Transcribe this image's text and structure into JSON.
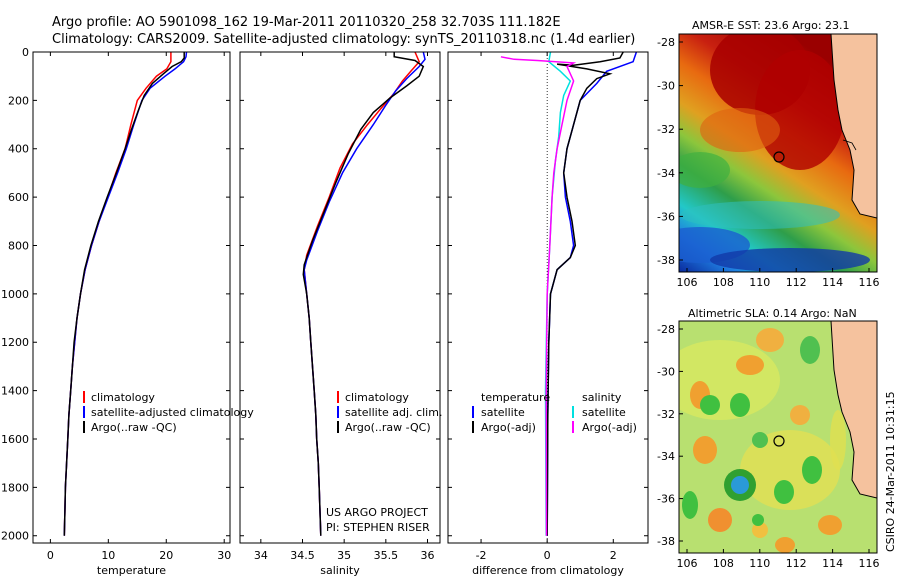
{
  "header": {
    "line1": "Argo profile: AO 5901098_162 19-Mar-2011 20110320_258 32.703S 111.182E",
    "line2": "Climatology: CARS2009. Satellite-adjusted climatology: synTS_20110318.nc (1.4d earlier)"
  },
  "colors": {
    "climatology": "#ff0000",
    "satellite": "#0000ff",
    "argo": "#000000",
    "satellite_salinity": "#00e0e0",
    "argo_salinity": "#ff00ff",
    "land": "#f5c29e"
  },
  "chart_data": [
    {
      "type": "line",
      "xlabel": "temperature",
      "xticks": [
        "0",
        "10",
        "20",
        "30"
      ],
      "yticks": [
        "0",
        "200",
        "400",
        "600",
        "800",
        "1000",
        "1200",
        "1400",
        "1600",
        "1800",
        "2000"
      ],
      "xlim": [
        -3,
        31
      ],
      "ylim": [
        2030,
        0
      ],
      "legend": [
        "climatology",
        "satellite-adjusted climatology",
        "Argo(..raw -QC)"
      ],
      "series": [
        {
          "name": "climatology",
          "color": "#ff0000",
          "points": [
            [
              20.8,
              0
            ],
            [
              20.8,
              40
            ],
            [
              20.1,
              70
            ],
            [
              18.3,
              100
            ],
            [
              16.5,
              150
            ],
            [
              15.0,
              200
            ],
            [
              13.9,
              300
            ],
            [
              12.9,
              400
            ],
            [
              11.3,
              500
            ],
            [
              9.9,
              600
            ],
            [
              8.4,
              700
            ],
            [
              7.1,
              800
            ],
            [
              6.0,
              900
            ],
            [
              5.2,
              1000
            ],
            [
              4.6,
              1100
            ],
            [
              4.2,
              1200
            ],
            [
              3.8,
              1300
            ],
            [
              3.5,
              1400
            ],
            [
              3.2,
              1500
            ],
            [
              3.0,
              1600
            ],
            [
              2.8,
              1700
            ],
            [
              2.6,
              1800
            ],
            [
              2.5,
              1900
            ],
            [
              2.4,
              2000
            ]
          ]
        },
        {
          "name": "satellite-adjusted climatology",
          "color": "#0000ff",
          "points": [
            [
              23.5,
              0
            ],
            [
              23.4,
              20
            ],
            [
              23.0,
              40
            ],
            [
              21.5,
              70
            ],
            [
              19.8,
              100
            ],
            [
              17.2,
              150
            ],
            [
              15.8,
              200
            ],
            [
              14.4,
              300
            ],
            [
              13.1,
              400
            ],
            [
              11.6,
              500
            ],
            [
              10.0,
              600
            ],
            [
              8.4,
              700
            ],
            [
              7.1,
              800
            ],
            [
              6.0,
              900
            ],
            [
              5.2,
              1000
            ],
            [
              4.6,
              1100
            ],
            [
              4.2,
              1200
            ],
            [
              3.8,
              1300
            ],
            [
              3.5,
              1400
            ],
            [
              3.2,
              1500
            ],
            [
              3.0,
              1600
            ],
            [
              2.8,
              1700
            ],
            [
              2.6,
              1800
            ],
            [
              2.5,
              1900
            ],
            [
              2.4,
              2000
            ]
          ]
        },
        {
          "name": "Argo(..raw -QC)",
          "color": "#000000",
          "points": [
            [
              23.1,
              0
            ],
            [
              23.1,
              25
            ],
            [
              22.6,
              40
            ],
            [
              21.0,
              60
            ],
            [
              19.5,
              90
            ],
            [
              17.6,
              130
            ],
            [
              16.2,
              180
            ],
            [
              15.2,
              240
            ],
            [
              14.0,
              320
            ],
            [
              12.9,
              400
            ],
            [
              11.4,
              500
            ],
            [
              9.8,
              600
            ],
            [
              8.3,
              700
            ],
            [
              7.0,
              800
            ],
            [
              5.9,
              900
            ],
            [
              5.2,
              1000
            ],
            [
              4.6,
              1100
            ],
            [
              4.1,
              1200
            ],
            [
              3.8,
              1300
            ],
            [
              3.5,
              1400
            ],
            [
              3.2,
              1500
            ],
            [
              3.0,
              1600
            ],
            [
              2.8,
              1700
            ],
            [
              2.6,
              1800
            ],
            [
              2.5,
              1900
            ],
            [
              2.4,
              2000
            ]
          ]
        }
      ]
    },
    {
      "type": "line",
      "xlabel": "salinity",
      "xticks": [
        "34",
        "34.5",
        "35",
        "35.5",
        "36"
      ],
      "xtick_values": [
        34,
        34.5,
        35,
        35.5,
        36
      ],
      "xlim": [
        33.75,
        36.15
      ],
      "ylim": [
        2030,
        0
      ],
      "legend": [
        "climatology",
        "satellite adj. clim.",
        "Argo(..raw -QC)"
      ],
      "series": [
        {
          "name": "climatology",
          "color": "#ff0000",
          "points": [
            [
              35.85,
              0
            ],
            [
              35.9,
              40
            ],
            [
              35.8,
              80
            ],
            [
              35.7,
              120
            ],
            [
              35.6,
              170
            ],
            [
              35.45,
              230
            ],
            [
              35.28,
              300
            ],
            [
              35.1,
              380
            ],
            [
              34.95,
              480
            ],
            [
              34.82,
              600
            ],
            [
              34.68,
              720
            ],
            [
              34.55,
              840
            ],
            [
              34.52,
              900
            ],
            [
              34.55,
              1000
            ],
            [
              34.58,
              1100
            ],
            [
              34.6,
              1200
            ],
            [
              34.62,
              1300
            ],
            [
              34.64,
              1400
            ],
            [
              34.66,
              1500
            ],
            [
              34.67,
              1600
            ],
            [
              34.69,
              1700
            ],
            [
              34.7,
              1800
            ],
            [
              34.71,
              1900
            ],
            [
              34.72,
              2000
            ]
          ]
        },
        {
          "name": "satellite adj. clim.",
          "color": "#0000ff",
          "points": [
            [
              35.95,
              0
            ],
            [
              35.97,
              30
            ],
            [
              35.9,
              60
            ],
            [
              35.75,
              110
            ],
            [
              35.62,
              160
            ],
            [
              35.5,
              220
            ],
            [
              35.35,
              300
            ],
            [
              35.15,
              400
            ],
            [
              34.98,
              500
            ],
            [
              34.82,
              620
            ],
            [
              34.68,
              740
            ],
            [
              34.55,
              860
            ],
            [
              34.52,
              900
            ],
            [
              34.55,
              1000
            ],
            [
              34.58,
              1100
            ],
            [
              34.6,
              1200
            ],
            [
              34.62,
              1300
            ],
            [
              34.64,
              1400
            ],
            [
              34.66,
              1500
            ],
            [
              34.67,
              1600
            ],
            [
              34.69,
              1700
            ],
            [
              34.7,
              1800
            ],
            [
              34.71,
              1900
            ],
            [
              34.72,
              2000
            ]
          ]
        },
        {
          "name": "Argo(..raw -QC)",
          "color": "#000000",
          "points": [
            [
              35.6,
              0
            ],
            [
              35.6,
              20
            ],
            [
              35.85,
              35
            ],
            [
              35.95,
              60
            ],
            [
              35.9,
              100
            ],
            [
              35.75,
              140
            ],
            [
              35.55,
              190
            ],
            [
              35.35,
              250
            ],
            [
              35.2,
              320
            ],
            [
              35.05,
              420
            ],
            [
              34.9,
              540
            ],
            [
              34.76,
              660
            ],
            [
              34.62,
              780
            ],
            [
              34.52,
              880
            ],
            [
              34.51,
              920
            ],
            [
              34.55,
              1000
            ],
            [
              34.58,
              1100
            ],
            [
              34.6,
              1200
            ],
            [
              34.62,
              1300
            ],
            [
              34.64,
              1400
            ],
            [
              34.66,
              1500
            ],
            [
              34.67,
              1600
            ],
            [
              34.69,
              1700
            ],
            [
              34.7,
              1800
            ],
            [
              34.71,
              1900
            ],
            [
              34.72,
              2000
            ]
          ]
        }
      ],
      "annotation": [
        "US ARGO PROJECT",
        "PI: STEPHEN RISER"
      ]
    },
    {
      "type": "line",
      "xlabel": "difference from climatology",
      "xticks": [
        "-2",
        "0",
        "2"
      ],
      "xlim": [
        -3.0,
        3.05
      ],
      "ylim": [
        2030,
        0
      ],
      "legend_left_title": "temperature",
      "legend_right_title": "salinity",
      "legend": [
        "satellite",
        "Argo(-adj)",
        "satellite",
        "Argo(-adj)"
      ],
      "series": [
        {
          "name": "satellite",
          "color": "#0000ff",
          "points": [
            [
              2.7,
              0
            ],
            [
              2.6,
              40
            ],
            [
              1.8,
              80
            ],
            [
              1.5,
              130
            ],
            [
              1.0,
              200
            ],
            [
              0.8,
              300
            ],
            [
              0.6,
              400
            ],
            [
              0.5,
              500
            ],
            [
              0.55,
              600
            ],
            [
              0.7,
              700
            ],
            [
              0.8,
              800
            ],
            [
              0.7,
              850
            ],
            [
              0.3,
              900
            ],
            [
              0.1,
              1000
            ],
            [
              0.05,
              1200
            ],
            [
              0.02,
              1500
            ],
            [
              0.0,
              2000
            ]
          ]
        },
        {
          "name": "Argo(-adj)",
          "color": "#000000",
          "points": [
            [
              2.3,
              0
            ],
            [
              2.2,
              25
            ],
            [
              1.6,
              40
            ],
            [
              0.8,
              55
            ],
            [
              0.3,
              50
            ],
            [
              1.2,
              70
            ],
            [
              1.9,
              90
            ],
            [
              1.5,
              110
            ],
            [
              1.2,
              150
            ],
            [
              1.0,
              200
            ],
            [
              0.8,
              300
            ],
            [
              0.6,
              400
            ],
            [
              0.5,
              500
            ],
            [
              0.6,
              600
            ],
            [
              0.75,
              700
            ],
            [
              0.85,
              800
            ],
            [
              0.7,
              850
            ],
            [
              0.3,
              900
            ],
            [
              0.1,
              1000
            ],
            [
              0.05,
              1200
            ],
            [
              0.02,
              1500
            ],
            [
              0.0,
              2000
            ]
          ]
        },
        {
          "name": "satellite",
          "color": "#00e0e0",
          "points": [
            [
              0.1,
              0
            ],
            [
              0.05,
              40
            ],
            [
              0.4,
              80
            ],
            [
              0.7,
              120
            ],
            [
              0.5,
              180
            ],
            [
              0.4,
              250
            ],
            [
              0.35,
              350
            ],
            [
              0.25,
              450
            ],
            [
              0.15,
              600
            ],
            [
              0.08,
              800
            ],
            [
              0.0,
              1000
            ],
            [
              -0.05,
              1400
            ],
            [
              -0.03,
              2000
            ]
          ]
        },
        {
          "name": "Argo(-adj)",
          "color": "#ff00ff",
          "points": [
            [
              -1.4,
              20
            ],
            [
              -1.0,
              30
            ],
            [
              -0.3,
              35
            ],
            [
              0.8,
              45
            ],
            [
              0.6,
              60
            ],
            [
              0.8,
              120
            ],
            [
              0.6,
              200
            ],
            [
              0.45,
              300
            ],
            [
              0.3,
              400
            ],
            [
              0.2,
              500
            ],
            [
              0.15,
              600
            ],
            [
              0.08,
              800
            ],
            [
              0.0,
              1000
            ],
            [
              -0.03,
              1400
            ],
            [
              -0.02,
              2000
            ]
          ]
        }
      ]
    }
  ],
  "maps": [
    {
      "title": "AMSR-E SST: 23.6 Argo: 23.1",
      "xticks": [
        "106",
        "108",
        "110",
        "112",
        "114",
        "116"
      ],
      "yticks": [
        "-28",
        "-30",
        "-32",
        "-34",
        "-36",
        "-38"
      ]
    },
    {
      "title": "Altimetric SLA: 0.14 Argo: NaN",
      "xticks": [
        "106",
        "108",
        "110",
        "112",
        "114",
        "116"
      ],
      "yticks": [
        "-28",
        "-30",
        "-32",
        "-34",
        "-36",
        "-38"
      ]
    }
  ],
  "footer_vertical": "CSIRO 24-Mar-2011 10:31:15"
}
